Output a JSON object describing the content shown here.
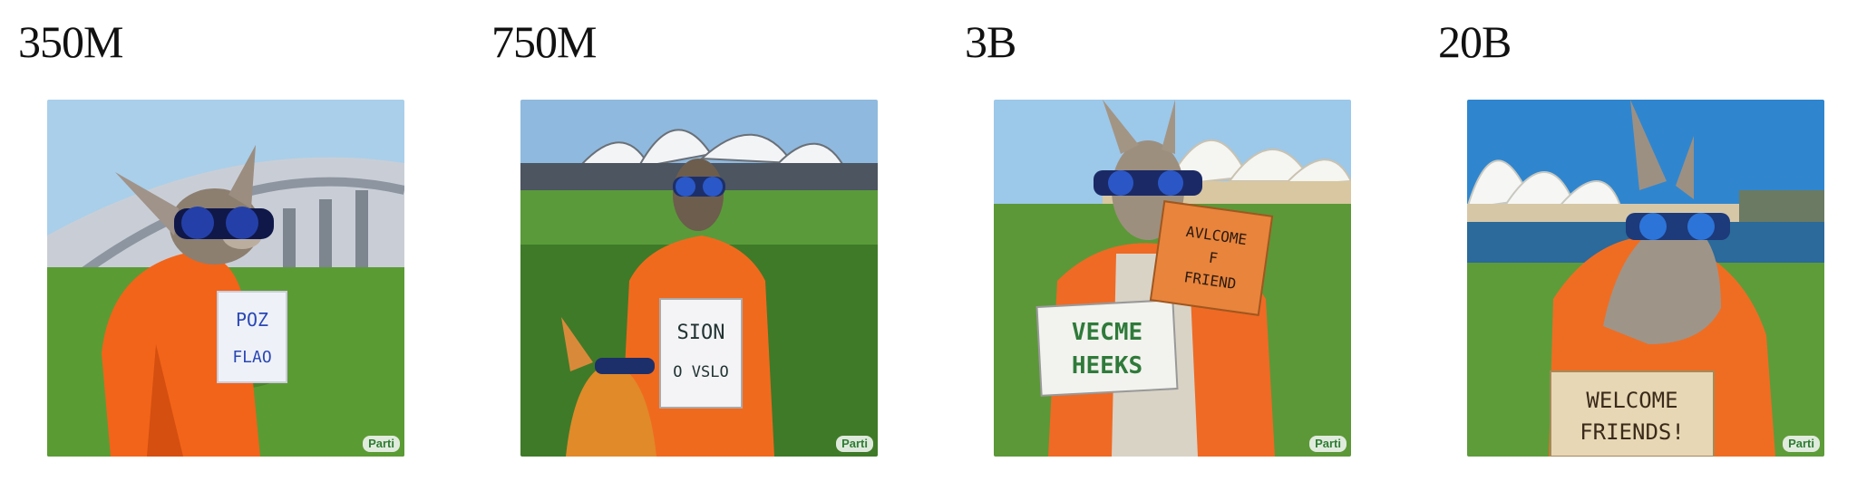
{
  "panels": [
    {
      "label": "350M",
      "watermark": "Parti",
      "sign_text": [
        "POZ",
        "FLAO"
      ]
    },
    {
      "label": "750M",
      "watermark": "Parti",
      "sign_text": [
        "SION",
        "O VSLO"
      ]
    },
    {
      "label": "3B",
      "watermark": "Parti",
      "sign_text": [
        "VECME",
        "HEEKS"
      ],
      "sign2_text": [
        "AVLCOME",
        "F",
        "FRIEND"
      ]
    },
    {
      "label": "20B",
      "watermark": "Parti",
      "sign_text": [
        "WELCOME",
        "FRIENDS!"
      ]
    }
  ],
  "colors": {
    "hoodie": "#f0621a",
    "grass": "#4f8a2e",
    "sky": "#8ec3e8",
    "glasses": "#2440a8"
  }
}
